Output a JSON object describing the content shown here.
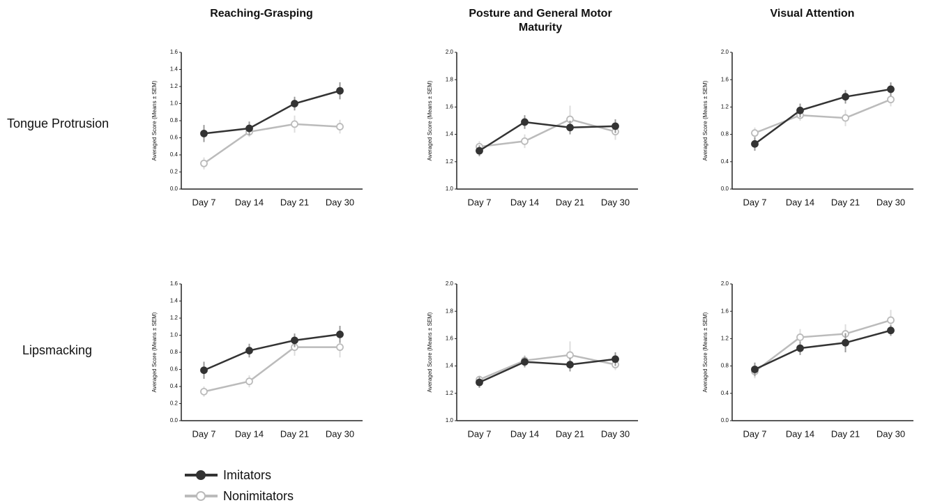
{
  "column_titles": [
    "Reaching-Grasping",
    "Posture and General Motor Maturity",
    "Visual Attention"
  ],
  "row_labels": [
    "Tongue Protrusion",
    "Lipsmacking"
  ],
  "chart_data": [
    {
      "type": "line",
      "y_label": "Averaged Score (Means ± SEM)",
      "categories": [
        "Day 7",
        "Day 14",
        "Day 21",
        "Day 30"
      ],
      "ylim": [
        0,
        1.6
      ],
      "yticks": [
        {
          "value": 0,
          "label": "0.0"
        },
        {
          "value": 0.2,
          "label": "0.2"
        },
        {
          "value": 0.4,
          "label": "0.4"
        },
        {
          "value": 0.6,
          "label": "0.6"
        },
        {
          "value": 0.8,
          "label": "0.8"
        },
        {
          "value": 1,
          "label": "1.0"
        },
        {
          "value": 1.2,
          "label": "1.2"
        },
        {
          "value": 1.4,
          "label": "1.4"
        },
        {
          "value": 1.6,
          "label": "1.6"
        }
      ],
      "series": [
        {
          "name": "Imitators",
          "color": "#333333",
          "values": [
            0.65,
            0.71,
            1.0,
            1.15
          ],
          "errors": [
            0.1,
            0.08,
            0.08,
            0.1
          ]
        },
        {
          "name": "Nonimitators",
          "color": "#bbbbbb",
          "values": [
            0.3,
            0.67,
            0.76,
            0.73
          ],
          "errors": [
            0.07,
            0.06,
            0.1,
            0.08
          ]
        }
      ]
    },
    {
      "type": "line",
      "y_label": "Averaged Score (Means ± SEM)",
      "categories": [
        "Day 7",
        "Day 14",
        "Day 21",
        "Day 30"
      ],
      "ylim": [
        1,
        2
      ],
      "yticks": [
        {
          "value": 1,
          "label": "1.0"
        },
        1.2,
        1.4,
        1.6,
        1.8,
        {
          "value": 2,
          "label": "2.0"
        }
      ],
      "series": [
        {
          "name": "Imitators",
          "color": "#333333",
          "values": [
            1.28,
            1.49,
            1.45,
            1.46
          ],
          "errors": [
            0.04,
            0.05,
            0.05,
            0.05
          ]
        },
        {
          "name": "Nonimitators",
          "color": "#bbbbbb",
          "values": [
            1.31,
            1.35,
            1.51,
            1.42
          ],
          "errors": [
            0.04,
            0.05,
            0.1,
            0.06
          ]
        }
      ]
    },
    {
      "type": "line",
      "y_label": "Averaged Score (Means ± SEM)",
      "categories": [
        "Day 7",
        "Day 14",
        "Day 21",
        "Day 30"
      ],
      "ylim": [
        0,
        2
      ],
      "yticks": [
        {
          "value": 0,
          "label": "0.0"
        },
        0.4,
        0.8,
        1.2,
        1.6,
        {
          "value": 2,
          "label": "2.0"
        }
      ],
      "series": [
        {
          "name": "Imitators",
          "color": "#333333",
          "values": [
            0.66,
            1.15,
            1.35,
            1.46
          ],
          "errors": [
            0.1,
            0.1,
            0.1,
            0.1
          ]
        },
        {
          "name": "Nonimitators",
          "color": "#bbbbbb",
          "values": [
            0.82,
            1.08,
            1.04,
            1.31
          ],
          "errors": [
            0.08,
            0.08,
            0.12,
            0.1
          ]
        }
      ]
    },
    {
      "type": "line",
      "y_label": "Averaged Score (Means ± SEM)",
      "categories": [
        "Day 7",
        "Day 14",
        "Day 21",
        "Day 30"
      ],
      "ylim": [
        0,
        1.6
      ],
      "yticks": [
        {
          "value": 0,
          "label": "0.0"
        },
        {
          "value": 0.2,
          "label": "0.2"
        },
        {
          "value": 0.4,
          "label": "0.4"
        },
        {
          "value": 0.6,
          "label": "0.6"
        },
        {
          "value": 0.8,
          "label": "0.8"
        },
        {
          "value": 1,
          "label": "1.0"
        },
        {
          "value": 1.2,
          "label": "1.2"
        },
        {
          "value": 1.4,
          "label": "1.4"
        },
        {
          "value": 1.6,
          "label": "1.6"
        }
      ],
      "series": [
        {
          "name": "Imitators",
          "color": "#333333",
          "values": [
            0.59,
            0.82,
            0.94,
            1.01
          ],
          "errors": [
            0.1,
            0.08,
            0.08,
            0.1
          ]
        },
        {
          "name": "Nonimitators",
          "color": "#bbbbbb",
          "values": [
            0.34,
            0.46,
            0.86,
            0.86
          ],
          "errors": [
            0.06,
            0.07,
            0.1,
            0.12
          ]
        }
      ]
    },
    {
      "type": "line",
      "y_label": "Averaged Score (Means ± SEM)",
      "categories": [
        "Day 7",
        "Day 14",
        "Day 21",
        "Day 30"
      ],
      "ylim": [
        1,
        2
      ],
      "yticks": [
        {
          "value": 1,
          "label": "1.0"
        },
        1.2,
        1.4,
        1.6,
        1.8,
        {
          "value": 2,
          "label": "2.0"
        }
      ],
      "series": [
        {
          "name": "Imitators",
          "color": "#333333",
          "values": [
            1.28,
            1.43,
            1.41,
            1.45
          ],
          "errors": [
            0.04,
            0.04,
            0.05,
            0.05
          ]
        },
        {
          "name": "Nonimitators",
          "color": "#bbbbbb",
          "values": [
            1.3,
            1.44,
            1.48,
            1.41
          ],
          "errors": [
            0.03,
            0.04,
            0.1,
            0.04
          ]
        }
      ]
    },
    {
      "type": "line",
      "y_label": "Averaged Score (Means ± SEM)",
      "categories": [
        "Day 7",
        "Day 14",
        "Day 21",
        "Day 30"
      ],
      "ylim": [
        0,
        2
      ],
      "yticks": [
        {
          "value": 0,
          "label": "0.0"
        },
        0.4,
        0.8,
        1.2,
        1.6,
        {
          "value": 2,
          "label": "2.0"
        }
      ],
      "series": [
        {
          "name": "Imitators",
          "color": "#333333",
          "values": [
            0.75,
            1.06,
            1.14,
            1.32
          ],
          "errors": [
            0.1,
            0.1,
            0.14,
            0.08
          ]
        },
        {
          "name": "Nonimitators",
          "color": "#bbbbbb",
          "values": [
            0.72,
            1.22,
            1.27,
            1.47
          ],
          "errors": [
            0.1,
            0.12,
            0.14,
            0.15
          ]
        }
      ]
    }
  ]
}
